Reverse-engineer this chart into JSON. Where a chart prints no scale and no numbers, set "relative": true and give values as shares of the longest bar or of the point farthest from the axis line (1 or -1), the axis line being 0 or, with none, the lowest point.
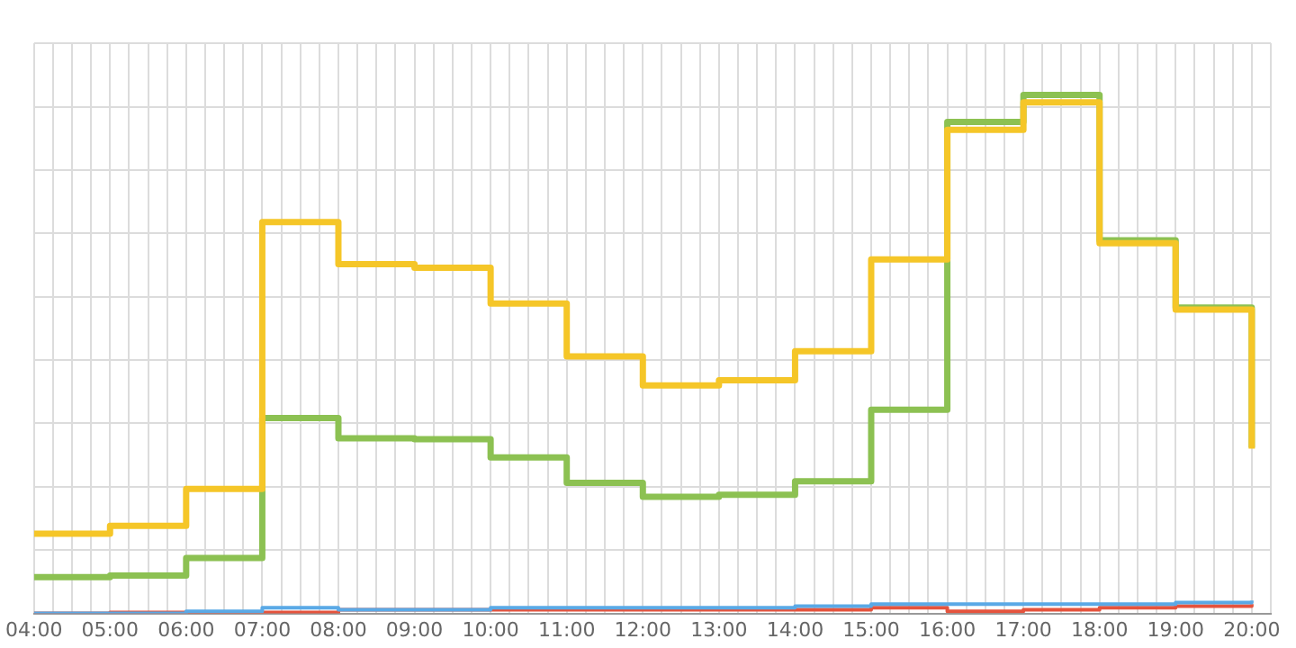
{
  "chart_data": {
    "type": "step",
    "relative": true,
    "grid": true,
    "x": [
      4,
      5,
      6,
      7,
      8,
      9,
      10,
      11,
      12,
      13,
      14,
      15,
      16,
      17,
      18,
      19,
      20
    ],
    "xlim": [
      4,
      20.25
    ],
    "xticks": [
      {
        "value": 4,
        "label": "04:00"
      },
      {
        "value": 4.25,
        "label": null
      },
      {
        "value": 4.5,
        "label": null
      },
      {
        "value": 4.75,
        "label": null
      },
      {
        "value": 5,
        "label": "05:00"
      },
      {
        "value": 5.25,
        "label": null
      },
      {
        "value": 5.5,
        "label": null
      },
      {
        "value": 5.75,
        "label": null
      },
      {
        "value": 6,
        "label": "06:00"
      },
      {
        "value": 6.25,
        "label": null
      },
      {
        "value": 6.5,
        "label": null
      },
      {
        "value": 6.75,
        "label": null
      },
      {
        "value": 7,
        "label": "07:00"
      },
      {
        "value": 7.25,
        "label": null
      },
      {
        "value": 7.5,
        "label": null
      },
      {
        "value": 7.75,
        "label": null
      },
      {
        "value": 8,
        "label": "08:00"
      },
      {
        "value": 8.25,
        "label": null
      },
      {
        "value": 8.5,
        "label": null
      },
      {
        "value": 8.75,
        "label": null
      },
      {
        "value": 9,
        "label": "09:00"
      },
      {
        "value": 9.25,
        "label": null
      },
      {
        "value": 9.5,
        "label": null
      },
      {
        "value": 9.75,
        "label": null
      },
      {
        "value": 10,
        "label": "10:00"
      },
      {
        "value": 10.25,
        "label": null
      },
      {
        "value": 10.5,
        "label": null
      },
      {
        "value": 10.75,
        "label": null
      },
      {
        "value": 11,
        "label": "11:00"
      },
      {
        "value": 11.25,
        "label": null
      },
      {
        "value": 11.5,
        "label": null
      },
      {
        "value": 11.75,
        "label": null
      },
      {
        "value": 12,
        "label": "12:00"
      },
      {
        "value": 12.25,
        "label": null
      },
      {
        "value": 12.5,
        "label": null
      },
      {
        "value": 12.75,
        "label": null
      },
      {
        "value": 13,
        "label": "13:00"
      },
      {
        "value": 13.25,
        "label": null
      },
      {
        "value": 13.5,
        "label": null
      },
      {
        "value": 13.75,
        "label": null
      },
      {
        "value": 14,
        "label": "14:00"
      },
      {
        "value": 14.25,
        "label": null
      },
      {
        "value": 14.5,
        "label": null
      },
      {
        "value": 14.75,
        "label": null
      },
      {
        "value": 15,
        "label": "15:00"
      },
      {
        "value": 15.25,
        "label": null
      },
      {
        "value": 15.5,
        "label": null
      },
      {
        "value": 15.75,
        "label": null
      },
      {
        "value": 16,
        "label": "16:00"
      },
      {
        "value": 16.25,
        "label": null
      },
      {
        "value": 16.5,
        "label": null
      },
      {
        "value": 16.75,
        "label": null
      },
      {
        "value": 17,
        "label": "17:00"
      },
      {
        "value": 17.25,
        "label": null
      },
      {
        "value": 17.5,
        "label": null
      },
      {
        "value": 17.75,
        "label": null
      },
      {
        "value": 18,
        "label": "18:00"
      },
      {
        "value": 18.25,
        "label": null
      },
      {
        "value": 18.5,
        "label": null
      },
      {
        "value": 18.75,
        "label": null
      },
      {
        "value": 19,
        "label": "19:00"
      },
      {
        "value": 19.25,
        "label": null
      },
      {
        "value": 19.5,
        "label": null
      },
      {
        "value": 19.75,
        "label": null
      },
      {
        "value": 20,
        "label": "20:00"
      },
      {
        "value": 20.25,
        "label": null
      }
    ],
    "series": [
      {
        "color": "#f5c628",
        "values": [
          0.154,
          0.169,
          0.24,
          0.755,
          0.674,
          0.667,
          0.598,
          0.496,
          0.44,
          0.45,
          0.506,
          0.683,
          0.933,
          0.986,
          0.714,
          0.586,
          0.318
        ]
      },
      {
        "color": "#8cc152",
        "values": [
          0.07,
          0.073,
          0.107,
          0.377,
          0.338,
          0.336,
          0.301,
          0.252,
          0.225,
          0.229,
          0.255,
          0.393,
          0.948,
          1,
          0.72,
          0.59,
          0.32
        ]
      },
      {
        "color": "#5aa9e6",
        "values": [
          0,
          0,
          0.004,
          0.011,
          0.007,
          0.007,
          0.011,
          0.011,
          0.011,
          0.011,
          0.014,
          0.018,
          0.018,
          0.018,
          0.018,
          0.021,
          0.025
        ]
      },
      {
        "color": "#e5533d",
        "values": [
          0,
          0.002,
          0.002,
          0.002,
          0.007,
          0.007,
          0.007,
          0.007,
          0.007,
          0.007,
          0.007,
          0.011,
          0.004,
          0.007,
          0.011,
          0.014,
          0.018
        ]
      }
    ]
  }
}
